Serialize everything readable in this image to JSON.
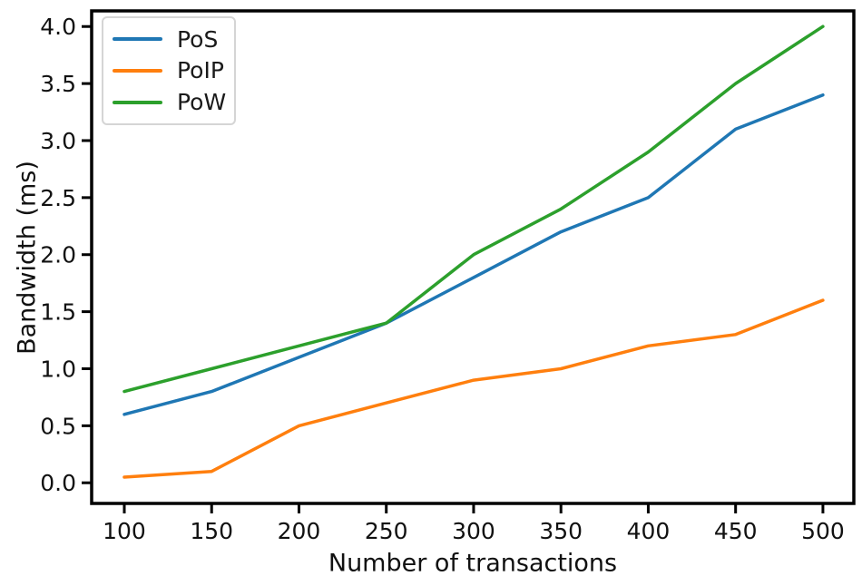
{
  "chart_data": {
    "type": "line",
    "title": "",
    "xlabel": "Number of transactions",
    "ylabel": "Bandwidth (ms)",
    "x": [
      100,
      150,
      200,
      250,
      300,
      350,
      400,
      450,
      500
    ],
    "series": [
      {
        "name": "PoS",
        "color": "#1f77b4",
        "values": [
          0.6,
          0.8,
          1.1,
          1.4,
          1.8,
          2.2,
          2.5,
          3.1,
          3.4
        ]
      },
      {
        "name": "PoIP",
        "color": "#ff7f0e",
        "values": [
          0.05,
          0.1,
          0.5,
          0.7,
          0.9,
          1.0,
          1.2,
          1.3,
          1.6
        ]
      },
      {
        "name": "PoW",
        "color": "#2ca02c",
        "values": [
          0.8,
          1.0,
          1.2,
          1.4,
          2.0,
          2.4,
          2.9,
          3.5,
          4.0
        ]
      }
    ],
    "x_ticks": {
      "values": [
        100,
        150,
        200,
        250,
        300,
        350,
        400,
        450,
        500
      ],
      "labels": [
        "100",
        "150",
        "200",
        "250",
        "300",
        "350",
        "400",
        "450",
        "500"
      ]
    },
    "y_ticks": {
      "values": [
        0.0,
        0.5,
        1.0,
        1.5,
        2.0,
        2.5,
        3.0,
        3.5,
        4.0
      ],
      "labels": [
        "0.0",
        "0.5",
        "1.0",
        "1.5",
        "2.0",
        "2.5",
        "3.0",
        "3.5",
        "4.0"
      ]
    },
    "xlim": [
      81.3,
      517.7
    ],
    "ylim": [
      -0.181,
      4.137
    ],
    "grid": false,
    "legend_position": "upper left",
    "axis_color": "#000000",
    "text_color": "#111111"
  }
}
